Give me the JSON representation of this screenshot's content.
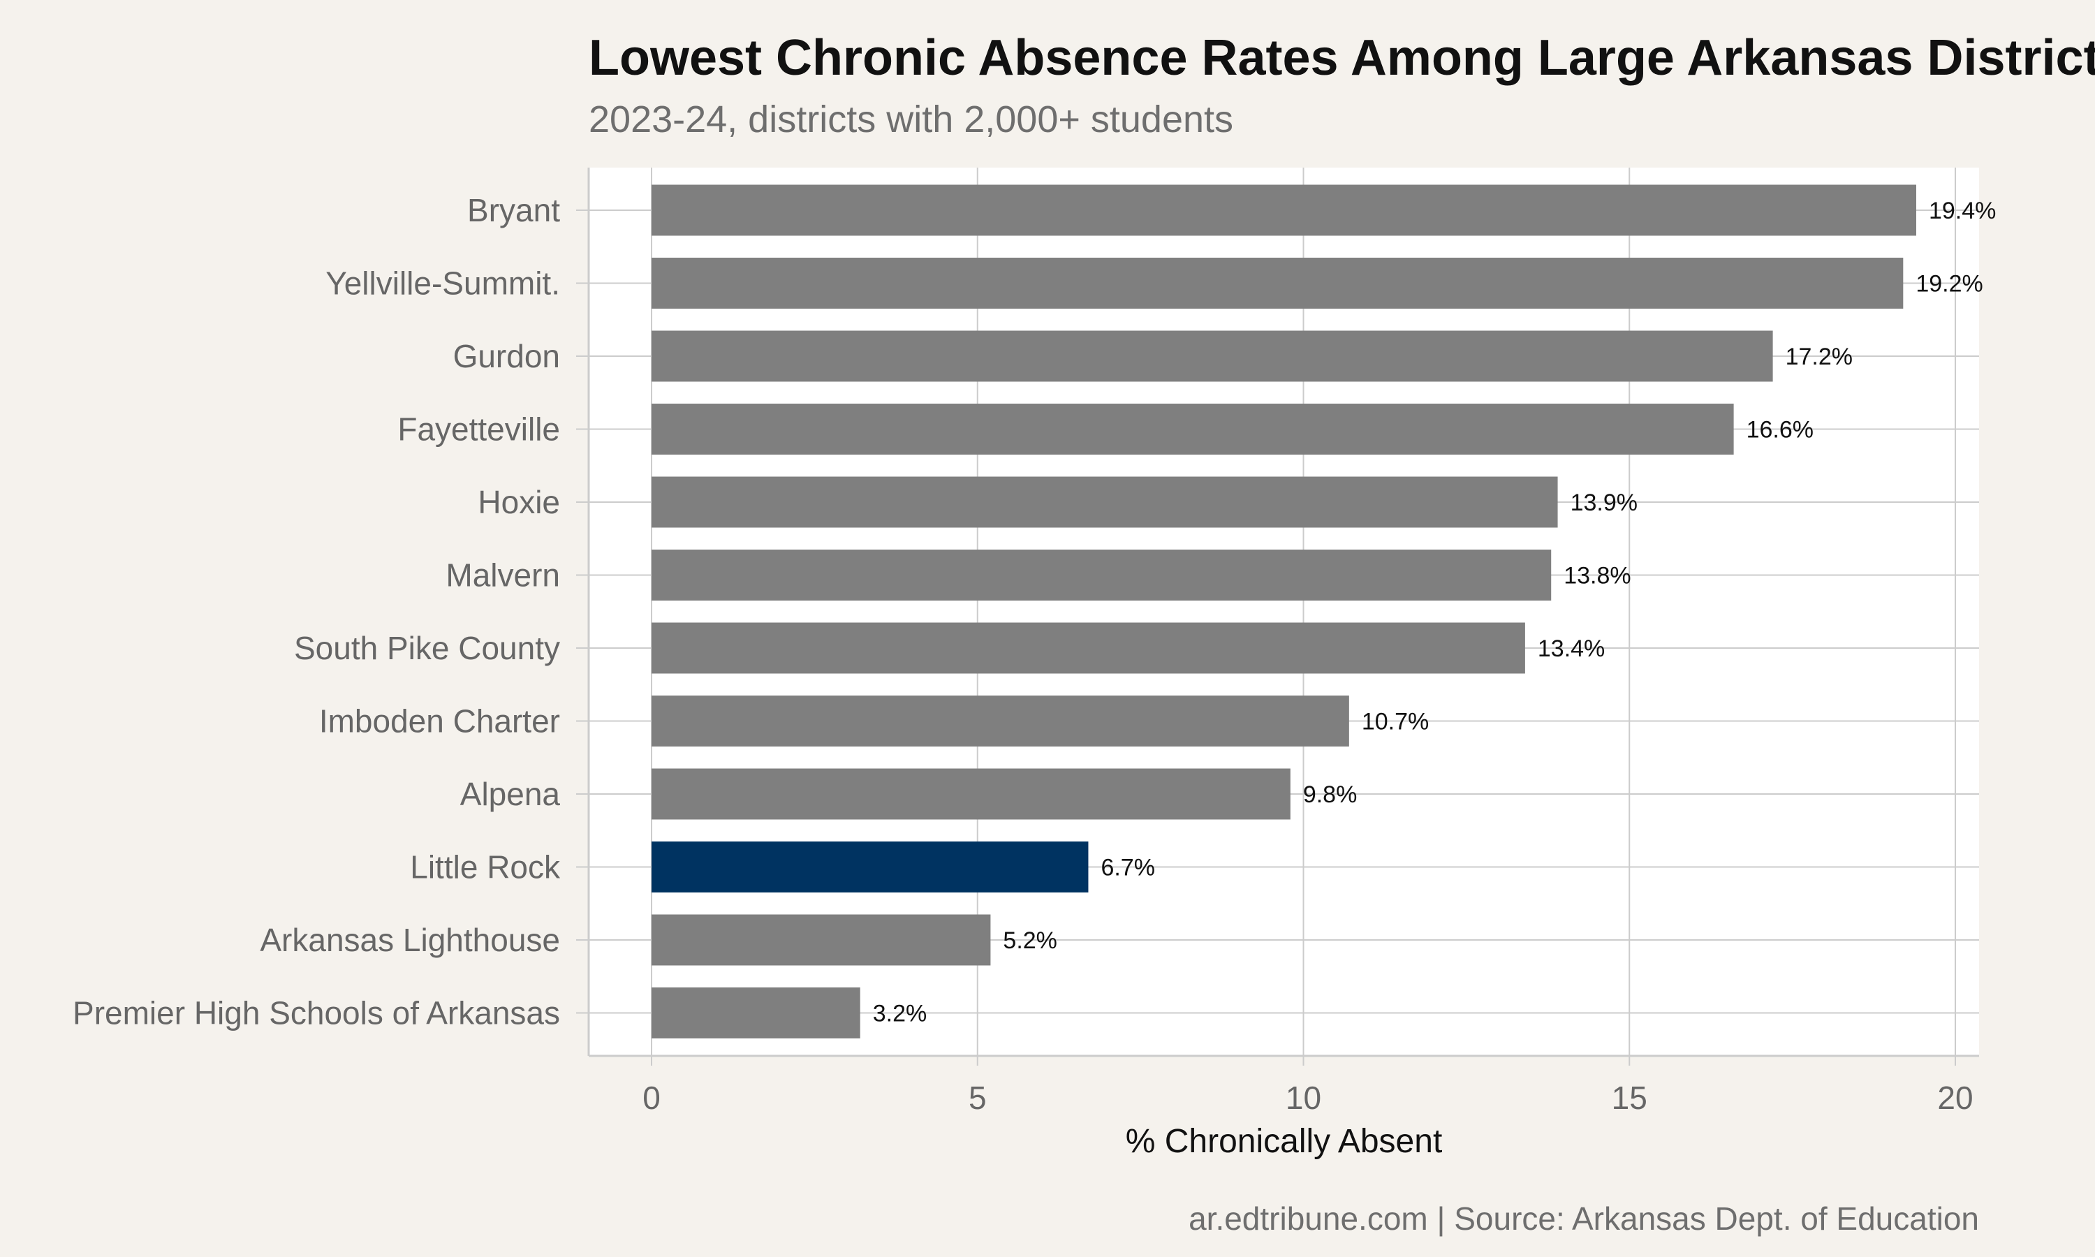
{
  "title": "Lowest Chronic Absence Rates Among Large Arkansas Districts",
  "subtitle": "2023-24, districts with 2,000+ students",
  "caption": "ar.edtribune.com | Source: Arkansas Dept. of Education",
  "colors": {
    "background": "#f5f2ed",
    "panel": "#ffffff",
    "bar_default": "#7f7f7f",
    "bar_highlight": "#003361",
    "grid": "#cccccc"
  },
  "chart_data": {
    "type": "bar",
    "orientation": "horizontal",
    "categories": [
      "Bryant",
      "Yellville-Summit.",
      "Gurdon",
      "Fayetteville",
      "Hoxie",
      "Malvern",
      "South Pike County",
      "Imboden Charter",
      "Alpena",
      "Little Rock",
      "Arkansas Lighthouse",
      "Premier High Schools of Arkansas"
    ],
    "values": [
      19.4,
      19.2,
      17.2,
      16.6,
      13.9,
      13.8,
      13.4,
      10.7,
      9.8,
      6.7,
      5.2,
      3.2
    ],
    "value_labels": [
      "19.4%",
      "19.2%",
      "17.2%",
      "16.6%",
      "13.9%",
      "13.8%",
      "13.4%",
      "10.7%",
      "9.8%",
      "6.7%",
      "5.2%",
      "3.2%"
    ],
    "highlight": "Little Rock",
    "xlabel": "% Chronically Absent",
    "ylabel": "",
    "xlim": [
      -1,
      20.4
    ],
    "xticks": [
      0,
      5,
      10,
      15,
      20
    ],
    "grid": true,
    "legend": "none"
  }
}
